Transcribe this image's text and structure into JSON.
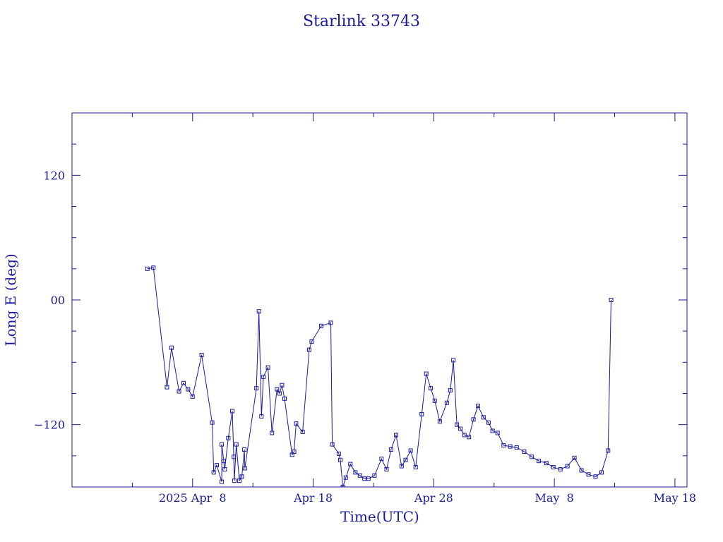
{
  "colors": {
    "ink": "#1a1a9c",
    "background": "#ffffff"
  },
  "chart_data": {
    "type": "line",
    "title": "Starlink 33743",
    "xlabel": "Time(UTC)",
    "ylabel": "Long E (deg)",
    "x_tick_labels": [
      "2025 Apr  8",
      "Apr 18",
      "Apr 28",
      "May  8",
      "May 18"
    ],
    "y_tick_labels": [
      "−120",
      "00",
      "120"
    ],
    "xlim": [
      "2025-03-29",
      "2025-05-19"
    ],
    "ylim": [
      -180,
      180
    ],
    "grid": false,
    "marker": "square",
    "x_tick_dates": [
      "2025-04-08",
      "2025-04-18",
      "2025-04-28",
      "2025-05-08",
      "2025-05-18"
    ],
    "y_ticks": [
      -120,
      0,
      120
    ],
    "series": [
      {
        "x": [
          "2025-04-04T06:00",
          "2025-04-04T18:00",
          "2025-04-05T21:00",
          "2025-04-06T06:00",
          "2025-04-06T21:00",
          "2025-04-07T06:00",
          "2025-04-07T15:00",
          "2025-04-08T00:00",
          "2025-04-08T18:00",
          "2025-04-09T15:00",
          "2025-04-09T18:00",
          "2025-04-10T00:00",
          "2025-04-10T10:00",
          "2025-04-10T10:00",
          "2025-04-10T14:00",
          "2025-04-10T16:00",
          "2025-04-10T23:00",
          "2025-04-11T07:00",
          "2025-04-11T10:00",
          "2025-04-11T11:00",
          "2025-04-11T15:00",
          "2025-04-11T21:00",
          "2025-04-12T02:00",
          "2025-04-12T07:00",
          "2025-04-12T08:00",
          "2025-04-13T07:00",
          "2025-04-13T12:00",
          "2025-04-13T17:00",
          "2025-04-13T21:00",
          "2025-04-14T06:00",
          "2025-04-14T14:00",
          "2025-04-15T00:00",
          "2025-04-15T05:00",
          "2025-04-15T10:00",
          "2025-04-15T15:00",
          "2025-04-16T06:00",
          "2025-04-16T10:00",
          "2025-04-16T14:00",
          "2025-04-17T03:00",
          "2025-04-17T16:00",
          "2025-04-17T21:00",
          "2025-04-18T16:00",
          "2025-04-19T11:00",
          "2025-04-19T14:00",
          "2025-04-20T03:00",
          "2025-04-20T06:00",
          "2025-04-20T11:00",
          "2025-04-20T17:00",
          "2025-04-21T02:00",
          "2025-04-21T12:00",
          "2025-04-21T21:00",
          "2025-04-22T06:00",
          "2025-04-22T14:00",
          "2025-04-23T02:00",
          "2025-04-23T16:00",
          "2025-04-24T02:00",
          "2025-04-24T11:00",
          "2025-04-24T21:00",
          "2025-04-25T08:00",
          "2025-04-25T16:00",
          "2025-04-26T02:00",
          "2025-04-26T12:00",
          "2025-04-27T00:00",
          "2025-04-27T09:00",
          "2025-04-27T18:00",
          "2025-04-28T02:00",
          "2025-04-28T12:00",
          "2025-04-29T02:00",
          "2025-04-29T09:00",
          "2025-04-29T15:00",
          "2025-04-29T22:00",
          "2025-04-30T05:00",
          "2025-04-30T13:00",
          "2025-04-30T22:00",
          "2025-05-01T07:00",
          "2025-05-01T16:00",
          "2025-05-02T03:00",
          "2025-05-02T13:00",
          "2025-05-02T21:00",
          "2025-05-03T07:00",
          "2025-05-03T19:00",
          "2025-05-04T08:00",
          "2025-05-04T21:00",
          "2025-05-05T12:00",
          "2025-05-06T03:00",
          "2025-05-06T17:00",
          "2025-05-07T08:00",
          "2025-05-07T22:00",
          "2025-05-08T12:00",
          "2025-05-09T02:00",
          "2025-05-09T16:00",
          "2025-05-10T06:00",
          "2025-05-10T20:00",
          "2025-05-11T10:00",
          "2025-05-11T22:00",
          "2025-05-12T11:00",
          "2025-05-12T17:00"
        ],
        "values": [
          30,
          31,
          -84,
          -46,
          -88,
          -80,
          -86,
          -93,
          -53,
          -118,
          -166,
          -159,
          -175,
          -139,
          -155,
          -163,
          -133,
          -107,
          -151,
          -174,
          -139,
          -174,
          -170,
          -144,
          -162,
          -85,
          -11,
          -112,
          -74,
          -65,
          -128,
          -86,
          -90,
          -82,
          -95,
          -149,
          -146,
          -119,
          -127,
          -48,
          -40,
          -25,
          -22,
          -139,
          -148,
          -154,
          -180,
          -171,
          -158,
          -166,
          -169,
          -172,
          -172,
          -169,
          -153,
          -163,
          -144,
          -130,
          -160,
          -154,
          -145,
          -161,
          -110,
          -71,
          -85,
          -97,
          -117,
          -99,
          -87,
          -58,
          -120,
          -124,
          -130,
          -132,
          -115,
          -102,
          -113,
          -118,
          -126,
          -128,
          -140,
          -141,
          -142,
          -146,
          -151,
          -155,
          -157,
          -161,
          -163,
          -160,
          -152,
          -164,
          -168,
          -170,
          -166,
          -145,
          0
        ]
      }
    ]
  }
}
